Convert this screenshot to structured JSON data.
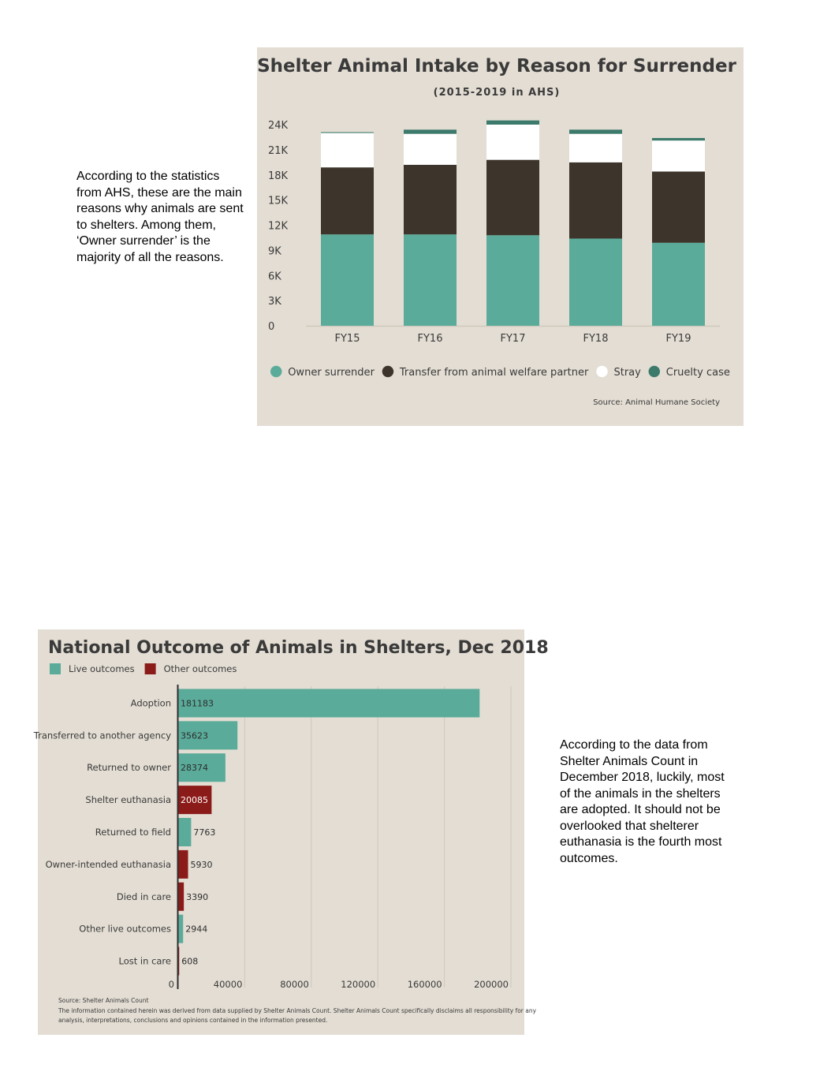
{
  "notes": {
    "intake": "According to the statistics from AHS, these are the main reasons why animals are sent to shelters. Among them, ‘Owner surrender’ is the majority of all the reasons.",
    "outcome": "According to the data from Shelter Animals Count in December 2018, luckily, most of the animals in the shelters are adopted. It should not be overlooked that shelterer euthanasia is the fourth most outcomes."
  },
  "chart_data": [
    {
      "type": "bar",
      "stacked": true,
      "title": "Shelter Animal Intake by Reason for Surrender",
      "subtitle": "(2015-2019 in AHS)",
      "source": "Source: Animal Humane Society",
      "categories": [
        "FY15",
        "FY16",
        "FY17",
        "FY18",
        "FY19"
      ],
      "ylim": [
        0,
        24000
      ],
      "yticks": [
        0,
        3000,
        6000,
        9000,
        12000,
        15000,
        18000,
        21000,
        24000
      ],
      "ytick_labels": [
        "0",
        "3K",
        "6K",
        "9K",
        "12K",
        "15K",
        "18K",
        "21K",
        "24K"
      ],
      "legend_position": "bottom",
      "grid": false,
      "series": [
        {
          "name": "Owner surrender",
          "color": "#5aab9a",
          "values": [
            10900,
            10900,
            10800,
            10400,
            9900
          ]
        },
        {
          "name": "Transfer from animal welfare partner",
          "color": "#3d352c",
          "values": [
            8000,
            8300,
            9000,
            9100,
            8500
          ]
        },
        {
          "name": "Stray",
          "color": "#ffffff",
          "values": [
            4100,
            3700,
            4200,
            3400,
            3700
          ]
        },
        {
          "name": "Cruelty case",
          "color": "#3c7a6c",
          "values": [
            100,
            500,
            500,
            500,
            300
          ]
        }
      ]
    },
    {
      "type": "bar",
      "orientation": "horizontal",
      "title": "National Outcome of Animals in Shelters,  Dec 2018",
      "legend": [
        {
          "name": "Live outcomes",
          "color": "#5aab9a"
        },
        {
          "name": "Other outcomes",
          "color": "#8b1b18"
        }
      ],
      "categories": [
        "Adoption",
        "Transferred to another agency",
        "Returned to owner",
        "Shelter euthanasia",
        "Returned to field",
        "Owner-intended euthanasia",
        "Died in care",
        "Other live outcomes",
        "Lost in care"
      ],
      "values": [
        181183,
        35623,
        28374,
        20085,
        7763,
        5930,
        3390,
        2944,
        608
      ],
      "groups": [
        "live",
        "live",
        "live",
        "other",
        "live",
        "other",
        "other",
        "live",
        "other"
      ],
      "xlim": [
        0,
        200000
      ],
      "xticks": [
        0,
        40000,
        80000,
        120000,
        160000,
        200000
      ],
      "grid": true,
      "legend_position": "top-left",
      "source": "Source: Shelter Animals Count",
      "disclaimer": [
        "The information contained herein was derived from data supplied by Shelter Animals Count. Shelter Animals Count specifically disclaims all responsibility for any",
        "analysis, interpretations, conclusions and opinions contained in the information presented."
      ]
    }
  ]
}
